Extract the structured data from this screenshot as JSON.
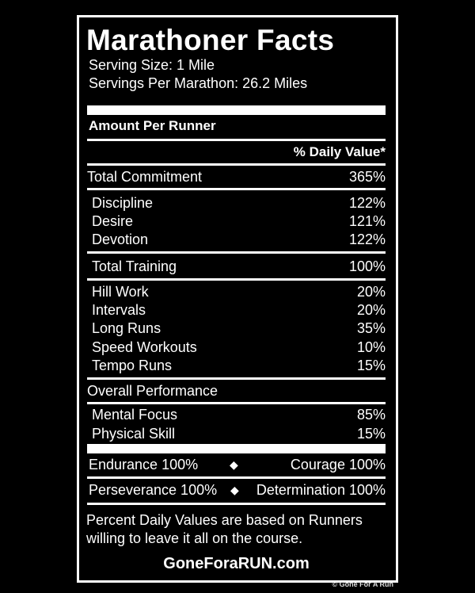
{
  "label": {
    "title": "Marathoner Facts",
    "serving_size": "Serving Size: 1 Mile",
    "servings_per": "Servings Per Marathon: 26.2 Miles",
    "amount_per": "Amount Per Runner",
    "daily_value_header": "% Daily Value*",
    "total_commitment": {
      "label": "Total Commitment",
      "value": "365%"
    },
    "commitment_items": [
      {
        "label": "Discipline",
        "value": "122%"
      },
      {
        "label": "Desire",
        "value": "121%"
      },
      {
        "label": "Devotion",
        "value": "122%"
      }
    ],
    "total_training": {
      "label": "Total Training",
      "value": "100%"
    },
    "training_items": [
      {
        "label": "Hill Work",
        "value": "20%"
      },
      {
        "label": "Intervals",
        "value": "20%"
      },
      {
        "label": "Long Runs",
        "value": "35%"
      },
      {
        "label": "Speed Workouts",
        "value": "10%"
      },
      {
        "label": "Tempo Runs",
        "value": "15%"
      }
    ],
    "overall_performance": "Overall Performance",
    "performance_items": [
      {
        "label": "Mental Focus",
        "value": "85%"
      },
      {
        "label": "Physical Skill",
        "value": "15%"
      }
    ],
    "endurance": "Endurance 100%",
    "courage": "Courage 100%",
    "perseverance": "Perseverance 100%",
    "determination": "Determination 100%",
    "diamond": "◆",
    "footnote_line1": "Percent Daily Values are based on Runners",
    "footnote_line2": "willing to leave it all on the course.",
    "website": "GoneForaRUN.com"
  },
  "copyright": "© Gone For A Run"
}
